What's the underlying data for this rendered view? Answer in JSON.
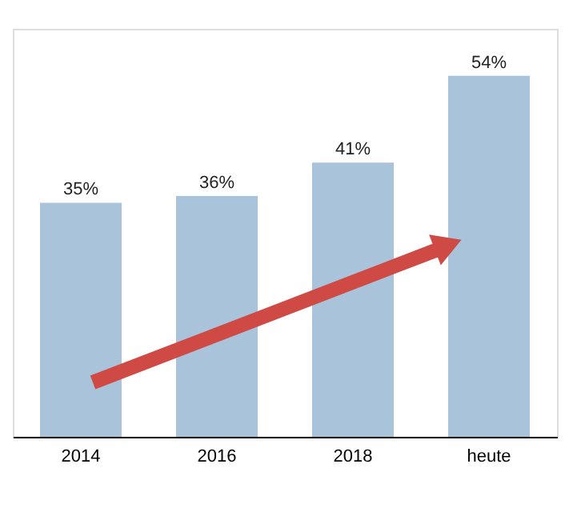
{
  "chart_data": {
    "type": "bar",
    "categories": [
      "2014",
      "2016",
      "2018",
      "heute"
    ],
    "series": [
      {
        "color": "#a9c4da",
        "values": [
          35,
          36,
          41,
          54
        ],
        "value_labels": [
          "35%",
          "36%",
          "41%",
          "54%"
        ]
      }
    ]
  }
}
